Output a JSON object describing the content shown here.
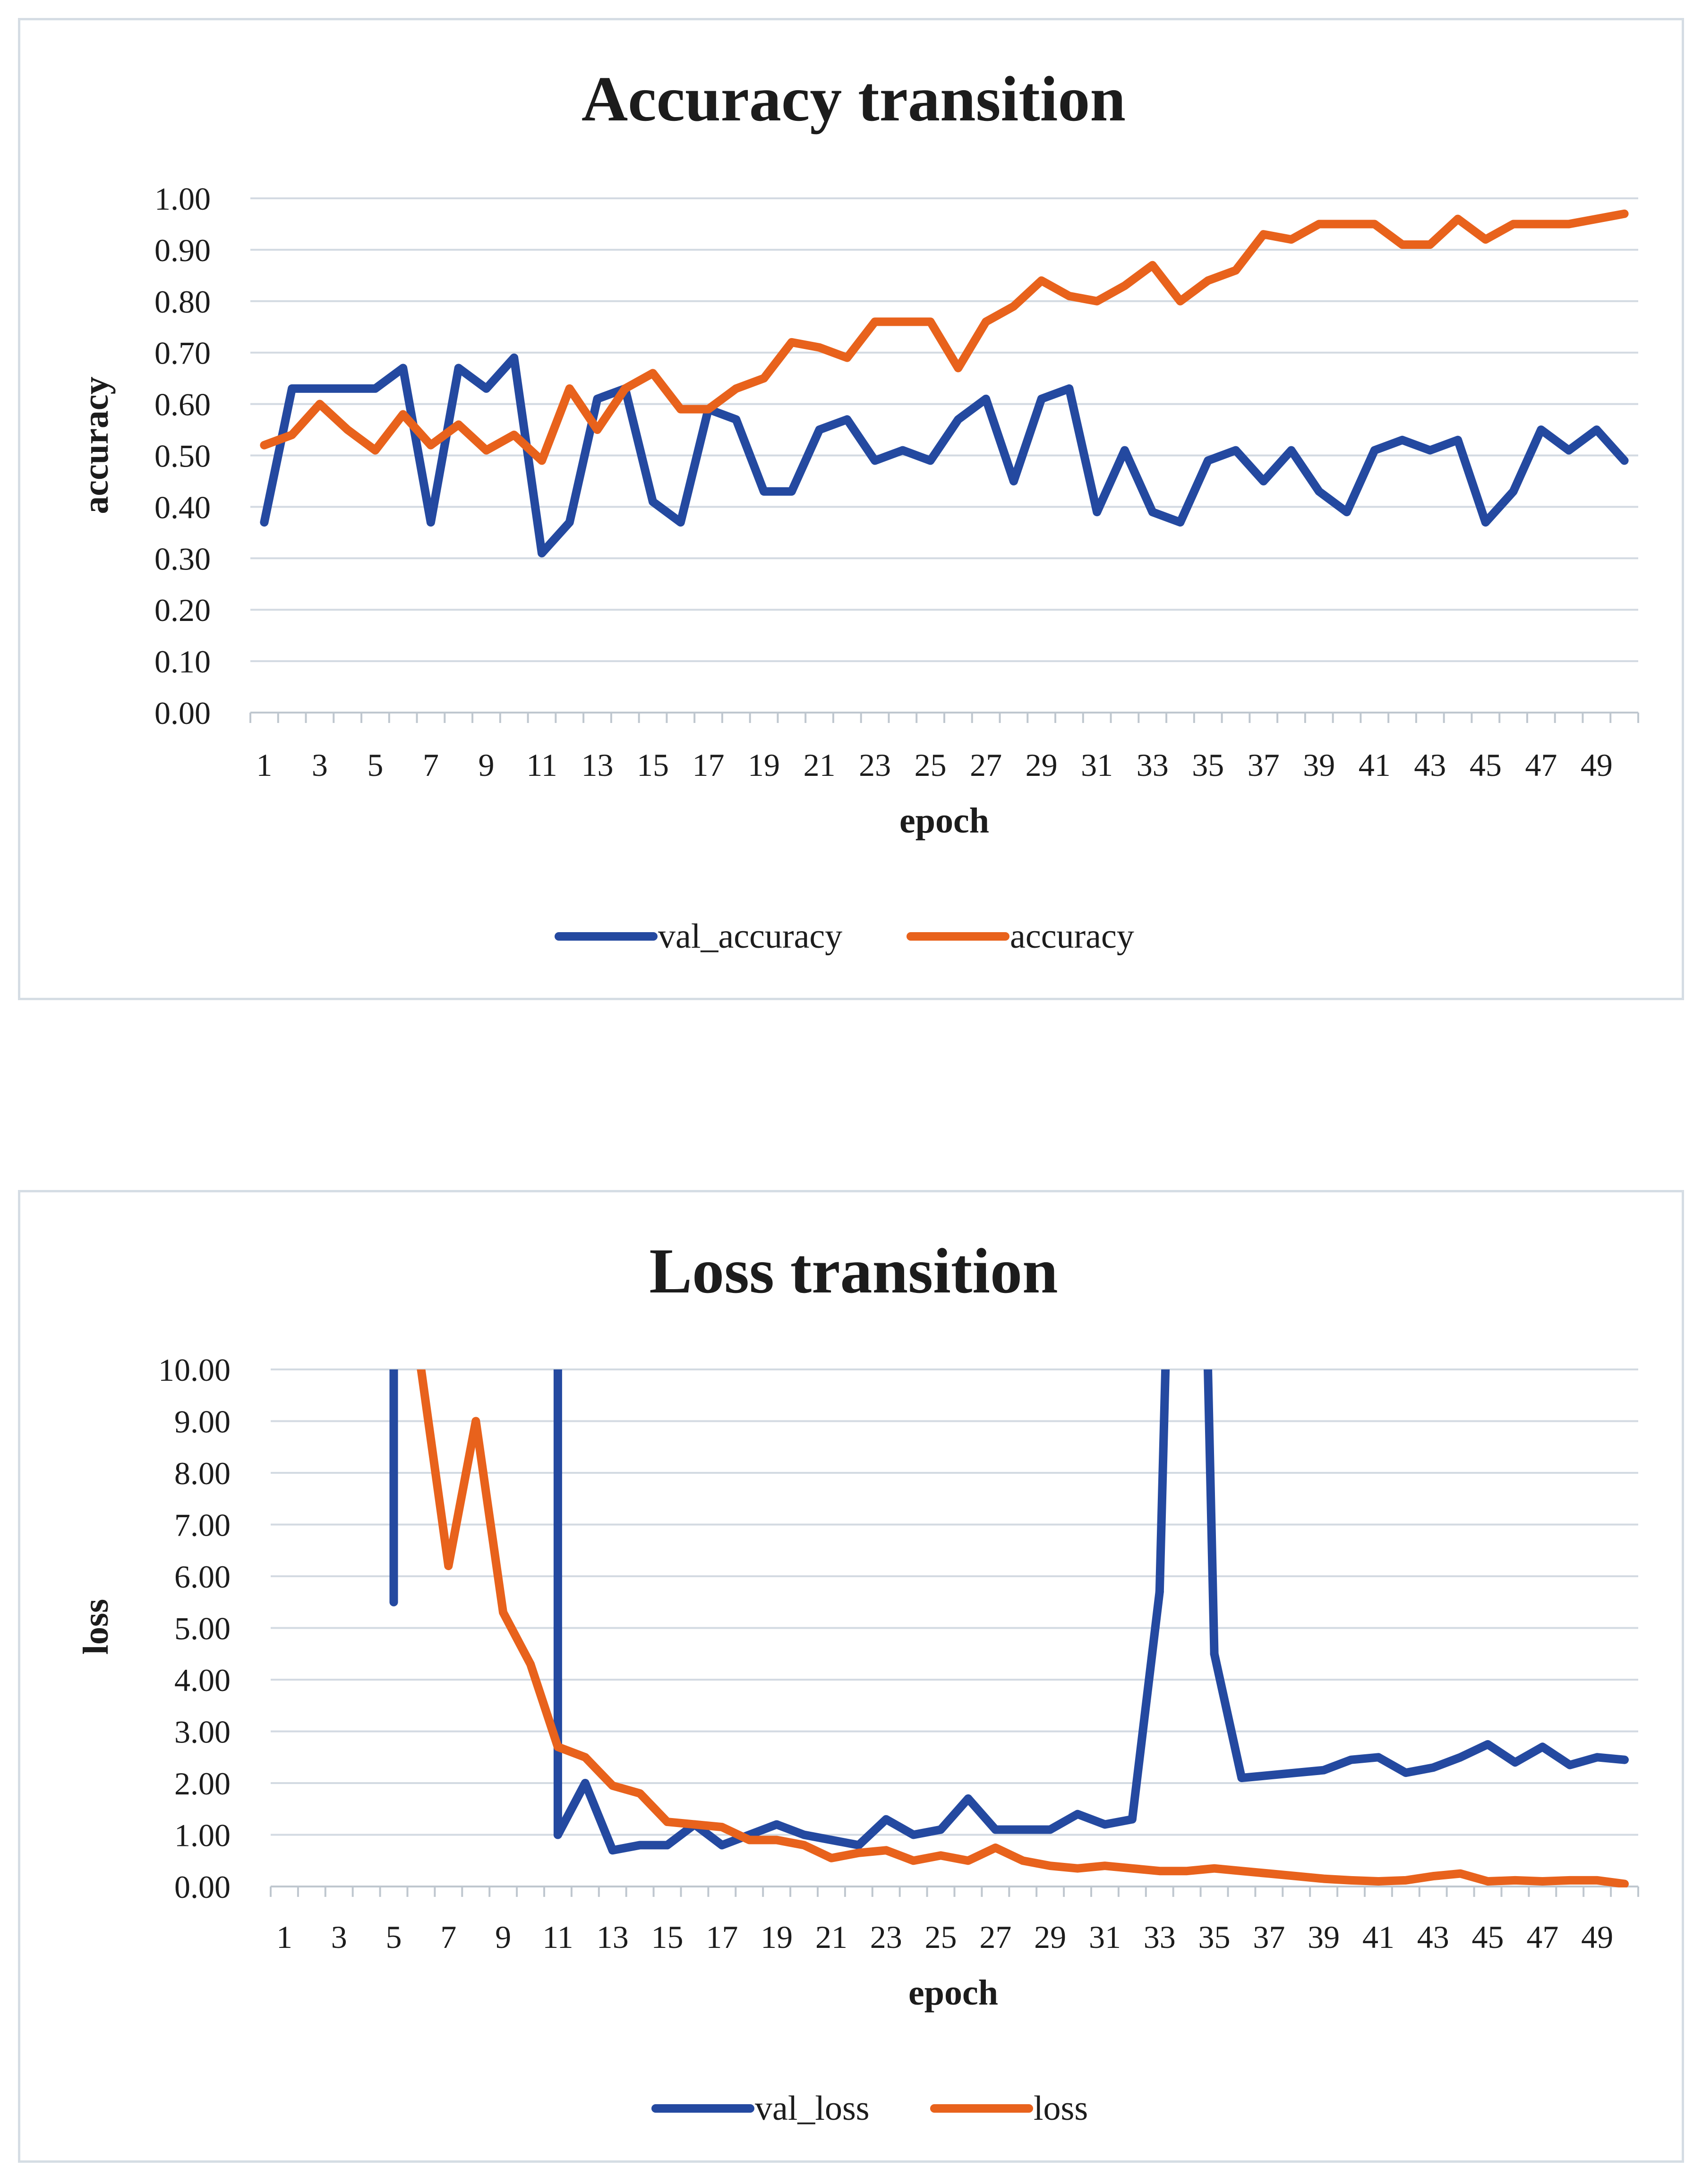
{
  "chart_data": [
    {
      "type": "line",
      "title": "Accuracy transition",
      "xlabel": "epoch",
      "ylabel": "accuracy",
      "ylim": [
        0,
        1
      ],
      "y_ticks": [
        "0.00",
        "0.10",
        "0.20",
        "0.30",
        "0.40",
        "0.50",
        "0.60",
        "0.70",
        "0.80",
        "0.90",
        "1.00"
      ],
      "x_tick_labels": [
        "1",
        "3",
        "5",
        "7",
        "9",
        "11",
        "13",
        "15",
        "17",
        "19",
        "21",
        "23",
        "25",
        "27",
        "29",
        "31",
        "33",
        "35",
        "37",
        "39",
        "41",
        "43",
        "45",
        "47",
        "49"
      ],
      "legend_position": "bottom",
      "series": [
        {
          "name": "val_accuracy",
          "color": "#2449a0",
          "values": [
            0.37,
            0.63,
            0.63,
            0.63,
            0.63,
            0.67,
            0.37,
            0.67,
            0.63,
            0.69,
            0.31,
            0.37,
            0.61,
            0.63,
            0.41,
            0.37,
            0.59,
            0.57,
            0.43,
            0.43,
            0.55,
            0.57,
            0.49,
            0.51,
            0.49,
            0.57,
            0.61,
            0.45,
            0.61,
            0.63,
            0.39,
            0.51,
            0.39,
            0.37,
            0.49,
            0.51,
            0.45,
            0.51,
            0.43,
            0.39,
            0.51,
            0.53,
            0.51,
            0.53,
            0.37,
            0.43,
            0.55,
            0.51,
            0.55,
            0.49
          ]
        },
        {
          "name": "accuracy",
          "color": "#e8621c",
          "values": [
            0.52,
            0.54,
            0.6,
            0.55,
            0.51,
            0.58,
            0.52,
            0.56,
            0.51,
            0.54,
            0.49,
            0.63,
            0.55,
            0.63,
            0.66,
            0.59,
            0.59,
            0.63,
            0.65,
            0.72,
            0.71,
            0.69,
            0.76,
            0.76,
            0.76,
            0.67,
            0.76,
            0.79,
            0.84,
            0.81,
            0.8,
            0.83,
            0.87,
            0.8,
            0.84,
            0.86,
            0.93,
            0.92,
            0.95,
            0.95,
            0.95,
            0.91,
            0.91,
            0.96,
            0.92,
            0.95,
            0.95,
            0.95,
            0.96,
            0.97
          ]
        }
      ]
    },
    {
      "type": "line",
      "title": "Loss transition",
      "xlabel": "epoch",
      "ylabel": "loss",
      "ylim": [
        0,
        10
      ],
      "y_ticks": [
        "0.00",
        "1.00",
        "2.00",
        "3.00",
        "4.00",
        "5.00",
        "6.00",
        "7.00",
        "8.00",
        "9.00",
        "10.00"
      ],
      "x_tick_labels": [
        "1",
        "3",
        "5",
        "7",
        "9",
        "11",
        "13",
        "15",
        "17",
        "19",
        "21",
        "23",
        "25",
        "27",
        "29",
        "31",
        "33",
        "35",
        "37",
        "39",
        "41",
        "43",
        "45",
        "47",
        "49"
      ],
      "legend_position": "bottom",
      "series": [
        {
          "name": "val_loss",
          "color": "#2449a0",
          "values": [
            null,
            null,
            null,
            null,
            5.5,
            null,
            null,
            null,
            null,
            null,
            1.0,
            2.0,
            0.7,
            0.8,
            0.8,
            1.2,
            0.8,
            1.0,
            1.2,
            1.0,
            0.9,
            0.8,
            1.3,
            1.0,
            1.1,
            1.7,
            1.1,
            1.1,
            1.1,
            1.4,
            1.2,
            1.3,
            5.7,
            null,
            4.5,
            2.1,
            2.15,
            2.2,
            2.25,
            2.45,
            2.5,
            2.2,
            2.3,
            2.5,
            2.75,
            2.4,
            2.7,
            2.35,
            2.5,
            2.45
          ]
        },
        {
          "name": "loss",
          "color": "#e8621c",
          "values": [
            null,
            null,
            null,
            null,
            null,
            10.0,
            6.2,
            9.0,
            5.3,
            4.3,
            2.7,
            2.5,
            1.95,
            1.8,
            1.25,
            1.2,
            1.15,
            0.9,
            0.9,
            0.8,
            0.55,
            0.65,
            0.7,
            0.5,
            0.6,
            0.5,
            0.75,
            0.5,
            0.4,
            0.35,
            0.4,
            0.35,
            0.3,
            0.3,
            0.35,
            0.3,
            0.25,
            0.2,
            0.15,
            0.12,
            0.1,
            0.12,
            0.2,
            0.25,
            0.1,
            0.12,
            0.1,
            0.12,
            0.12,
            0.05
          ]
        }
      ]
    }
  ]
}
